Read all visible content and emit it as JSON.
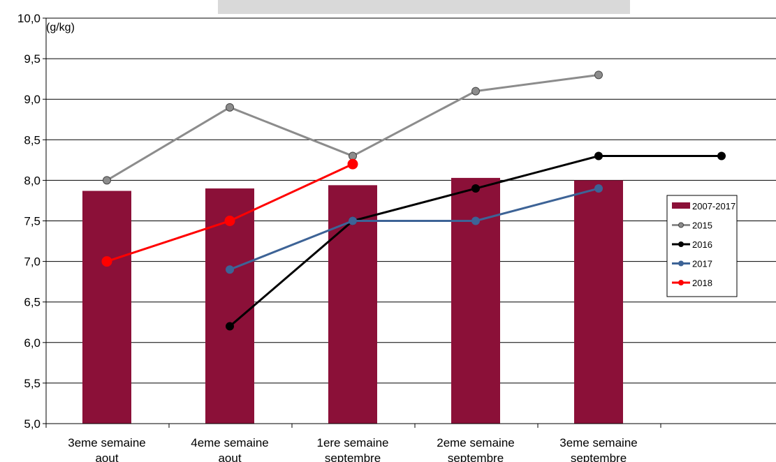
{
  "chart_data": {
    "type": "bar",
    "title": "",
    "unit_label": "(g/kg)",
    "ylim": [
      5.0,
      10.0
    ],
    "ytick_step": 0.5,
    "grid": true,
    "legend_position": "right",
    "categories": [
      [
        "3eme semaine",
        "aout"
      ],
      [
        "4eme semaine",
        "aout"
      ],
      [
        "1ere semaine",
        "septembre"
      ],
      [
        "2eme semaine",
        "septembre"
      ],
      [
        "3eme semaine",
        "septembre"
      ],
      [
        "",
        ""
      ]
    ],
    "bar_series": {
      "name": "2007-2017",
      "color": "#8b1038",
      "values": [
        7.87,
        7.9,
        7.94,
        8.03,
        8.0,
        null
      ]
    },
    "line_series": [
      {
        "name": "2015",
        "color": "#8c8c8c",
        "values": [
          8.0,
          8.9,
          8.3,
          9.1,
          9.3,
          null
        ]
      },
      {
        "name": "2016",
        "color": "#000000",
        "values": [
          null,
          6.2,
          7.5,
          7.9,
          8.3,
          8.3
        ]
      },
      {
        "name": "2017",
        "color": "#3d6396",
        "values": [
          null,
          6.9,
          7.5,
          7.5,
          7.9,
          null
        ]
      },
      {
        "name": "2018",
        "color": "#ff0000",
        "values": [
          7.0,
          7.5,
          8.2,
          null,
          null,
          null
        ]
      }
    ]
  }
}
